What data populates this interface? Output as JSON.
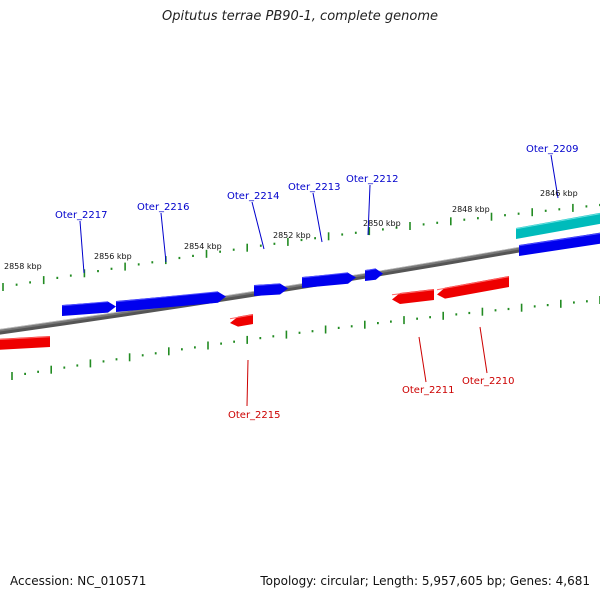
{
  "title": "Opitutus terrae PB90-1, complete genome",
  "footer": {
    "accession": "Accession: NC_010571",
    "summary": "Topology: circular; Length: 5,957,605 bp; Genes: 4,681"
  },
  "colors": {
    "forward_gene": "#0000ee",
    "reverse_gene": "#ee0000",
    "other_gene": "#00bbbb",
    "backbone": "#777777",
    "ticks": "#228b22",
    "forward_label": "#0000cc",
    "reverse_label": "#cc0000",
    "tick_label": "#111111"
  },
  "scale_labels": [
    "2858 kbp",
    "2856 kbp",
    "2854 kbp",
    "2852 kbp",
    "2850 kbp",
    "2848 kbp",
    "2846 kbp"
  ],
  "genes": [
    {
      "label": "Oter_2217",
      "strand": "forward"
    },
    {
      "label": "Oter_2216",
      "strand": "forward"
    },
    {
      "label": "Oter_2214",
      "strand": "forward"
    },
    {
      "label": "Oter_2213",
      "strand": "forward"
    },
    {
      "label": "Oter_2212",
      "strand": "forward"
    },
    {
      "label": "Oter_2209",
      "strand": "forward"
    },
    {
      "label": "Oter_2215",
      "strand": "reverse"
    },
    {
      "label": "Oter_2211",
      "strand": "reverse"
    },
    {
      "label": "Oter_2210",
      "strand": "reverse"
    }
  ]
}
